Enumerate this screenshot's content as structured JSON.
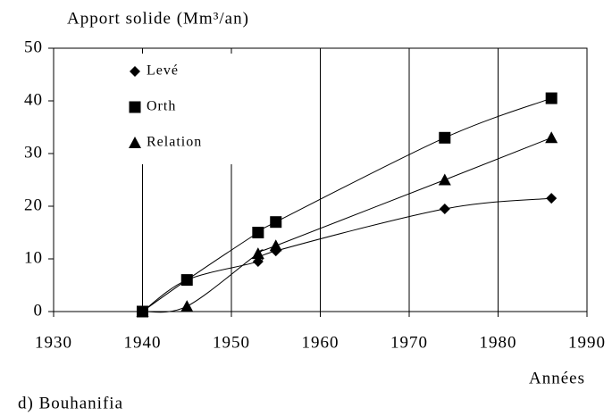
{
  "chart_data": {
    "type": "scatter",
    "title": "Apport solide (Mm³/an)",
    "x_label": "Années",
    "caption": "d) Bouhanifia",
    "x": [
      1940,
      1945,
      1953,
      1955,
      1974,
      1986
    ],
    "series": [
      {
        "name": "Levé",
        "color": "#000000",
        "marker": "diamond",
        "values": [
          0,
          6,
          9.5,
          11.5,
          19.5,
          21.5
        ]
      },
      {
        "name": "Orth",
        "color": "#000000",
        "marker": "square",
        "values": [
          0,
          6,
          15,
          17,
          33,
          40.5
        ]
      },
      {
        "name": "Relation",
        "color": "#000000",
        "marker": "triangle",
        "values": [
          0,
          1,
          11,
          12.5,
          25,
          33
        ]
      }
    ],
    "xlim": [
      1930,
      1990
    ],
    "xticks": [
      1930,
      1940,
      1950,
      1960,
      1970,
      1980,
      1990
    ],
    "ylim": [
      0,
      50
    ],
    "yticks": [
      0,
      10,
      20,
      30,
      40,
      50
    ],
    "grid": "x",
    "legend": "upper left"
  }
}
